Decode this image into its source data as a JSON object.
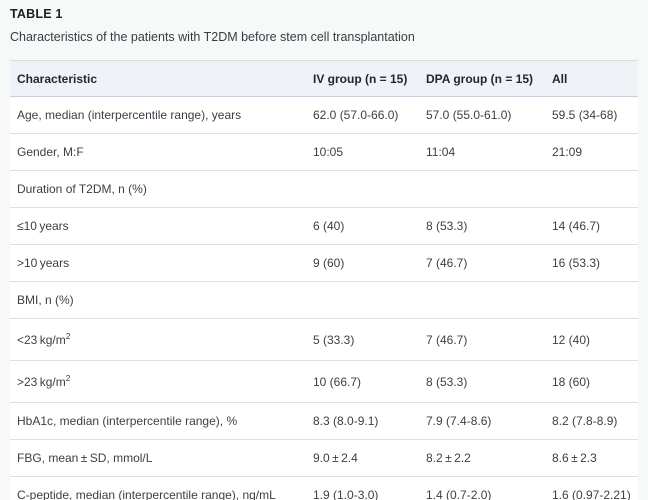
{
  "colors": {
    "page_background": "#f7f8f8",
    "table_background": "#ffffff",
    "header_background": "#eff2f7",
    "border": "#dcdfe3",
    "header_border": "#c9cfd8",
    "title_text": "#1c1f26",
    "body_text": "#3b4046"
  },
  "header": {
    "table_label": "TABLE 1",
    "caption": "Characteristics of the patients with T2DM before stem cell transplantation"
  },
  "table": {
    "columns": [
      "Characteristic",
      "IV group (n = 15)",
      "DPA group (n = 15)",
      "All"
    ],
    "rows": [
      {
        "label": "Age, median (interpercentile range), years",
        "iv": "62.0 (57.0-66.0)",
        "dpa": "57.0 (55.0-61.0)",
        "all": "59.5 (34-68)"
      },
      {
        "label": "Gender, M:F",
        "iv": "10:05",
        "dpa": "11:04",
        "all": "21:09"
      },
      {
        "label": "Duration of T2DM, n (%)",
        "iv": "",
        "dpa": "",
        "all": ""
      },
      {
        "label": "≤10 years",
        "iv": "6 (40)",
        "dpa": "8 (53.3)",
        "all": "14 (46.7)"
      },
      {
        "label": ">10 years",
        "iv": "9 (60)",
        "dpa": "7 (46.7)",
        "all": "16 (53.3)"
      },
      {
        "label": "BMI, n (%)",
        "iv": "",
        "dpa": "",
        "all": ""
      },
      {
        "label": "<23 kg/m",
        "label_sup": "2",
        "iv": "5 (33.3)",
        "dpa": "7 (46.7)",
        "all": "12 (40)"
      },
      {
        "label": ">23 kg/m",
        "label_sup": "2",
        "iv": "10 (66.7)",
        "dpa": "8 (53.3)",
        "all": "18 (60)"
      },
      {
        "label": "HbA1c, median (interpercentile range), %",
        "iv": "8.3 (8.0-9.1)",
        "dpa": "7.9 (7.4-8.6)",
        "all": "8.2 (7.8-8.9)"
      },
      {
        "label": "FBG, mean ± SD, mmol/L",
        "iv": "9.0 ± 2.4",
        "dpa": "8.2 ± 2.2",
        "all": "8.6 ± 2.3"
      },
      {
        "label": "C-peptide, median (interpercentile range), ng/mL",
        "iv": "1.9 (1.0-3.0)",
        "dpa": "1.4 (0.7-2.0)",
        "all": "1.6 (0.97-2.21)"
      }
    ]
  }
}
